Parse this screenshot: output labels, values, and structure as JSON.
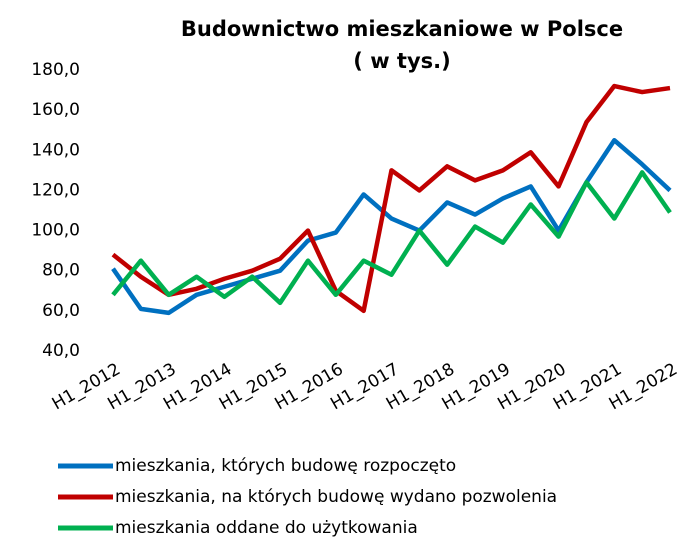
{
  "chart_data": {
    "type": "line",
    "title": [
      "Budownictwo mieszkaniowe w Polsce",
      "( w tys.)"
    ],
    "categories": [
      "H1_2012",
      null,
      "H1_2013",
      null,
      "H1_2014",
      null,
      "H1_2015",
      null,
      "H1_2016",
      null,
      "H1_2017",
      null,
      "H1_2018",
      null,
      "H1_2019",
      null,
      "H1_2020",
      null,
      "H1_2021",
      null,
      "H1_2022"
    ],
    "series": [
      {
        "name": "mieszkania, których budowę rozpoczęto",
        "color": "#0070c0",
        "values": [
          81,
          61,
          59,
          68,
          72,
          76,
          80,
          95,
          99,
          118,
          106,
          100,
          114,
          108,
          116,
          122,
          100,
          124,
          145,
          133,
          120
        ]
      },
      {
        "name": "mieszkania, na których budowę wydano pozwolenia",
        "color": "#c00000",
        "values": [
          88,
          77,
          68,
          71,
          76,
          80,
          86,
          100,
          70,
          60,
          130,
          120,
          132,
          125,
          130,
          139,
          122,
          154,
          172,
          169,
          171
        ]
      },
      {
        "name": "mieszkania oddane do użytkowania",
        "color": "#00b050",
        "values": [
          68,
          85,
          68,
          77,
          67,
          77,
          64,
          85,
          68,
          85,
          78,
          100,
          83,
          102,
          94,
          113,
          97,
          124,
          106,
          129,
          109
        ]
      }
    ],
    "ylim": [
      40,
      180
    ],
    "yticks": [
      {
        "value": 40,
        "label": "40,0"
      },
      {
        "value": 60,
        "label": "60,0"
      },
      {
        "value": 80,
        "label": "80,0"
      },
      {
        "value": 100,
        "label": "100,0"
      },
      {
        "value": 120,
        "label": "120,0"
      },
      {
        "value": 140,
        "label": "140,0"
      },
      {
        "value": 160,
        "label": "160,0"
      },
      {
        "value": 180,
        "label": "180,0"
      }
    ],
    "grid": false
  }
}
